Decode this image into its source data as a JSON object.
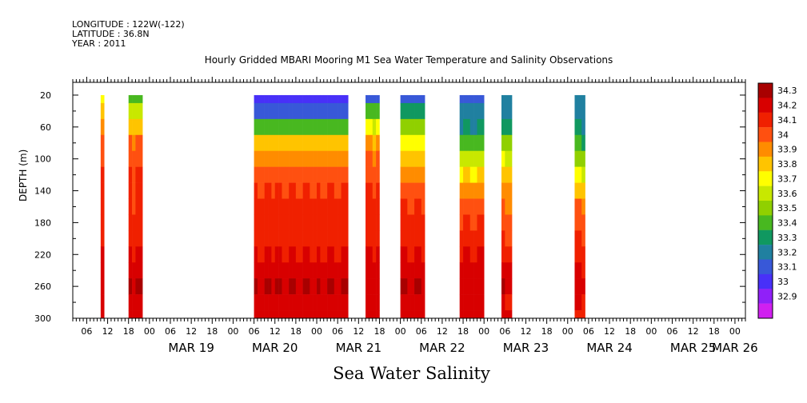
{
  "header": {
    "longitude": "LONGITUDE : 122W(-122)",
    "latitude": "LATITUDE : 36.8N",
    "year": "YEAR : 2011"
  },
  "chart_data": {
    "type": "heatmap",
    "title": "Hourly Gridded MBARI Mooring M1 Sea Water Temperature and Salinity Observations",
    "bottom_title": "Sea Water Salinity",
    "xlabel": "",
    "ylabel": "DEPTH (m)",
    "x_start": "MAR 18 02:00",
    "x_end": "MAR 26 06:00",
    "ylim": [
      300,
      0
    ],
    "y_ticks": [
      20,
      60,
      100,
      140,
      180,
      220,
      260,
      300
    ],
    "hour_tick_labels": [
      "06",
      "12",
      "18",
      "00",
      "06",
      "12",
      "18",
      "00",
      "06",
      "12",
      "18",
      "00",
      "06",
      "12",
      "18",
      "00",
      "06",
      "12",
      "18",
      "00",
      "06",
      "12",
      "18",
      "00",
      "06",
      "12",
      "18",
      "00",
      "06",
      "12",
      "18",
      "00"
    ],
    "hour_tick_positions_hours": [
      4,
      10,
      16,
      22,
      28,
      34,
      40,
      46,
      52,
      58,
      64,
      70,
      76,
      82,
      88,
      94,
      100,
      106,
      112,
      118,
      124,
      130,
      136,
      142,
      148,
      154,
      160,
      166,
      172,
      178,
      184,
      190
    ],
    "date_labels": [
      {
        "label": "MAR 19",
        "at_hours": 34
      },
      {
        "label": "MAR 20",
        "at_hours": 58
      },
      {
        "label": "MAR 21",
        "at_hours": 82
      },
      {
        "label": "MAR 22",
        "at_hours": 106
      },
      {
        "label": "MAR 23",
        "at_hours": 130
      },
      {
        "label": "MAR 24",
        "at_hours": 154
      },
      {
        "label": "MAR 25",
        "at_hours": 178
      },
      {
        "label": "MAR 26",
        "at_hours": 190
      }
    ],
    "colorbar": {
      "levels": [
        "34.3",
        "34.2",
        "34.1",
        "34",
        "33.9",
        "33.8",
        "33.7",
        "33.6",
        "33.5",
        "33.4",
        "33.3",
        "33.2",
        "33.1",
        "33",
        "32.9"
      ],
      "colors": [
        "#a80000",
        "#d80000",
        "#f02000",
        "#ff5010",
        "#ff8c00",
        "#ffc400",
        "#ffff00",
        "#c8e800",
        "#90d000",
        "#48b820",
        "#109860",
        "#2080a0",
        "#3858d8",
        "#4830f8",
        "#9020f8",
        "#d020f0"
      ]
    },
    "depth_rows": [
      20,
      40,
      60,
      80,
      100,
      120,
      140,
      160,
      180,
      200,
      220,
      240,
      260,
      280,
      300
    ],
    "segments": [
      {
        "start_hours": 8,
        "end_hours": 9,
        "profile": [
          33.75,
          33.85,
          33.95,
          34.05,
          34.05,
          34.1,
          34.1,
          34.1,
          34.15,
          34.15,
          34.2,
          34.25,
          34.25,
          34.25,
          34.2
        ]
      },
      {
        "start_hours": 16,
        "end_hours": 20,
        "profile": [
          33.45,
          33.65,
          33.85,
          34.0,
          34.05,
          34.1,
          34.1,
          34.1,
          34.15,
          34.15,
          34.2,
          34.25,
          34.3,
          34.25,
          34.2
        ]
      },
      {
        "start_hours": 52,
        "end_hours": 79,
        "profile": [
          33.05,
          33.1,
          33.45,
          33.85,
          33.95,
          34.05,
          34.1,
          34.15,
          34.15,
          34.15,
          34.2,
          34.25,
          34.3,
          34.25,
          34.2
        ]
      },
      {
        "start_hours": 84,
        "end_hours": 88,
        "profile": [
          33.15,
          33.4,
          33.7,
          33.9,
          34.0,
          34.05,
          34.1,
          34.15,
          34.15,
          34.15,
          34.2,
          34.25,
          34.25,
          34.25,
          34.2
        ]
      },
      {
        "start_hours": 94,
        "end_hours": 101,
        "profile": [
          33.15,
          33.3,
          33.55,
          33.75,
          33.85,
          33.95,
          34.05,
          34.1,
          34.15,
          34.15,
          34.2,
          34.25,
          34.3,
          34.25,
          34.2
        ]
      },
      {
        "start_hours": 111,
        "end_hours": 118,
        "profile": [
          33.15,
          33.2,
          33.3,
          33.45,
          33.65,
          33.8,
          33.95,
          34.05,
          34.1,
          34.15,
          34.2,
          34.25,
          34.25,
          34.25,
          34.2
        ]
      },
      {
        "start_hours": 123,
        "end_hours": 126,
        "profile": [
          33.2,
          33.25,
          33.35,
          33.55,
          33.7,
          33.85,
          33.95,
          34.0,
          34.05,
          34.1,
          34.15,
          34.25,
          34.3,
          34.2,
          34.2
        ]
      },
      {
        "start_hours": 144,
        "end_hours": 147,
        "profile": [
          33.25,
          33.25,
          33.3,
          33.4,
          33.55,
          33.7,
          33.85,
          34.0,
          34.05,
          34.1,
          34.15,
          34.2,
          34.25,
          34.2,
          34.15
        ]
      }
    ]
  }
}
